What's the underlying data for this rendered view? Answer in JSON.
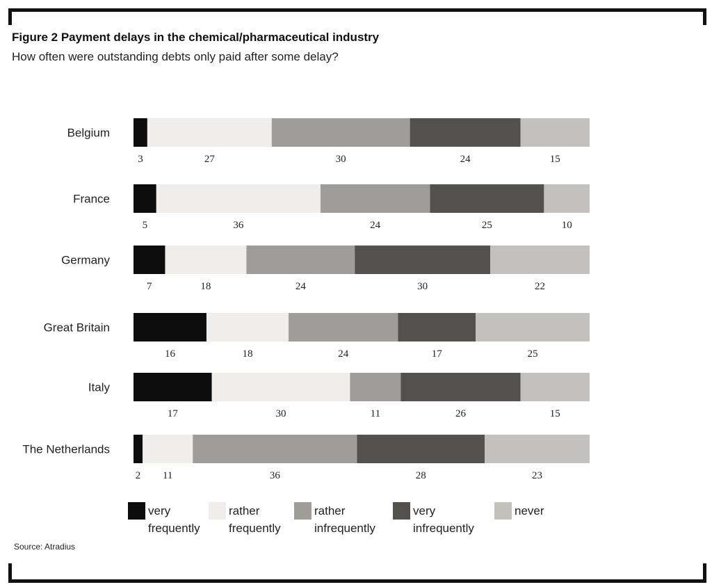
{
  "header": {
    "title": "Figure 2 Payment delays in the chemical/pharmaceutical industry",
    "subtitle": "How often were outstanding debts only paid after some delay?"
  },
  "footer": {
    "source": "Source: Atradius"
  },
  "colors": {
    "very frequently": "#0d0d0d",
    "rather frequently": "#efeeec",
    "rather infrequently": "#9f9d99",
    "very infrequently": "#53514e",
    "never": "#c2c1be"
  },
  "chart_data": {
    "type": "bar",
    "orientation": "horizontal",
    "stacked": true,
    "title": "Figure 2 Payment delays in the chemical/pharmaceutical industry",
    "subtitle": "How often were outstanding debts only paid after some delay?",
    "categories": [
      "Belgium",
      "France",
      "Germany",
      "Great Britain",
      "Italy",
      "The Netherlands"
    ],
    "series": [
      {
        "name": "very frequently",
        "values": [
          3,
          5,
          7,
          16,
          17,
          2
        ]
      },
      {
        "name": "rather frequently",
        "values": [
          27,
          36,
          18,
          18,
          30,
          11
        ]
      },
      {
        "name": "rather infrequently",
        "values": [
          30,
          24,
          24,
          24,
          11,
          36
        ]
      },
      {
        "name": "very infrequently",
        "values": [
          24,
          25,
          30,
          17,
          26,
          28
        ]
      },
      {
        "name": "never",
        "values": [
          15,
          10,
          22,
          25,
          15,
          23
        ]
      }
    ],
    "legend_position": "bottom",
    "grid": false
  }
}
